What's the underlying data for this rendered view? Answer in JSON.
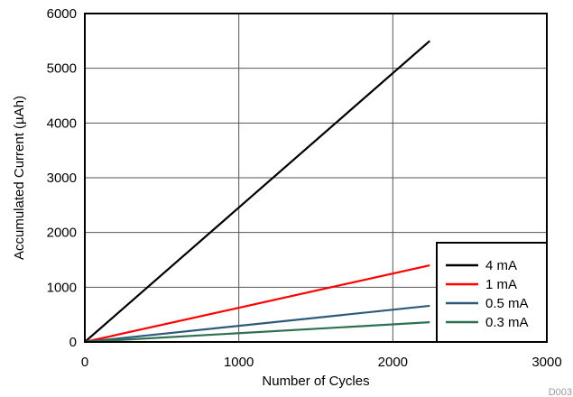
{
  "chart_data": {
    "type": "line",
    "title": "",
    "xlabel": "Number of Cycles",
    "ylabel": "Accumulated Current (µAh)",
    "xlim": [
      0,
      3000
    ],
    "ylim": [
      0,
      6000
    ],
    "x_ticks": [
      0,
      1000,
      2000,
      3000
    ],
    "y_ticks": [
      0,
      1000,
      2000,
      3000,
      4000,
      5000,
      6000
    ],
    "grid": true,
    "legend_position": "bottom-right",
    "series": [
      {
        "name": "4 mA",
        "color": "#000000",
        "x": [
          0,
          2240
        ],
        "y": [
          0,
          5500
        ]
      },
      {
        "name": "1 mA",
        "color": "#ff0000",
        "x": [
          0,
          2240
        ],
        "y": [
          0,
          1400
        ]
      },
      {
        "name": "0.5 mA",
        "color": "#2d5a7b",
        "x": [
          0,
          2240
        ],
        "y": [
          0,
          660
        ]
      },
      {
        "name": "0.3 mA",
        "color": "#2e7050",
        "x": [
          0,
          2240
        ],
        "y": [
          0,
          360
        ]
      }
    ]
  },
  "figure_id": "D003"
}
